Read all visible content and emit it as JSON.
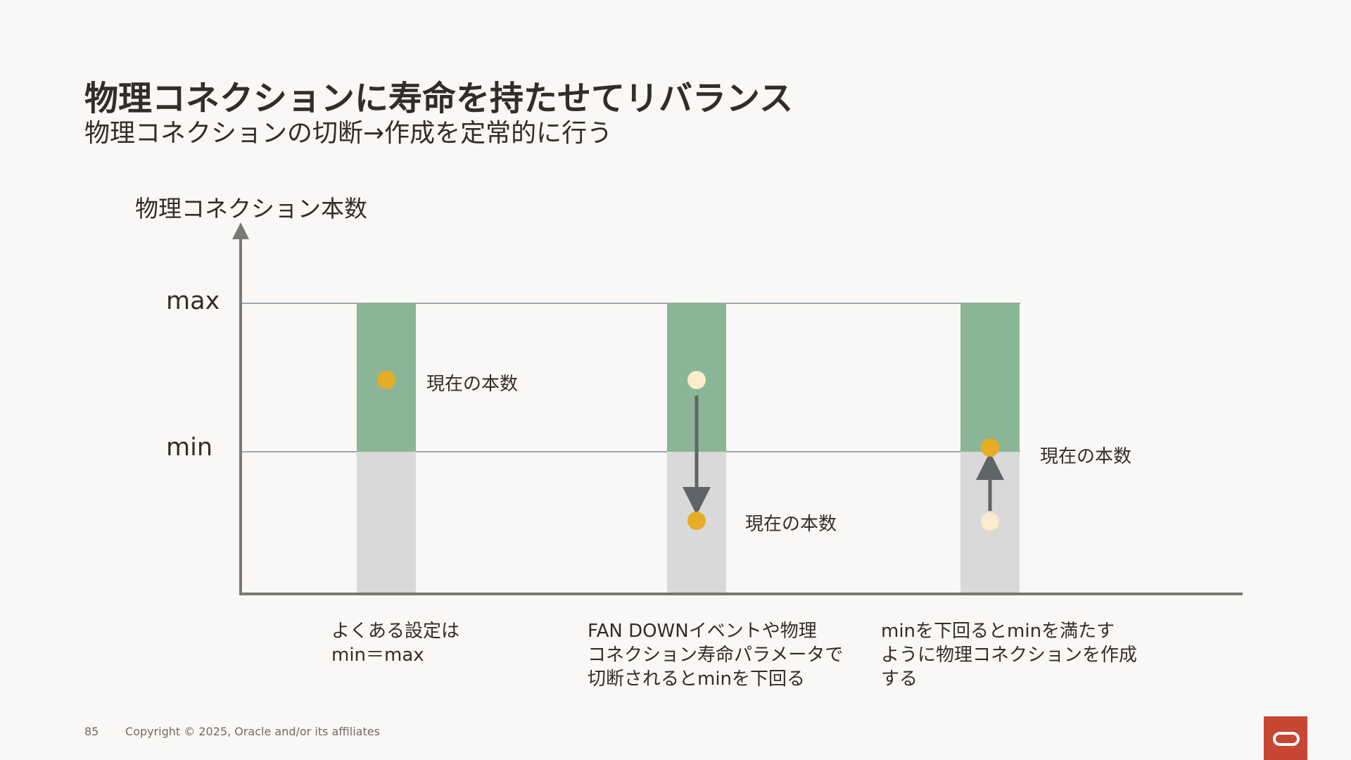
{
  "title": "物理コネクションに寿命を持たせてリバランス",
  "subtitle": "物理コネクションの切断→作成を定常的に行う",
  "axis": {
    "y_label": "物理コネクション本数",
    "max_label": "max",
    "min_label": "min"
  },
  "columns": [
    {
      "point_label": "現在の本数",
      "caption": "よくある設定は\nmin＝max"
    },
    {
      "point_label": "現在の本数",
      "caption": "FAN DOWNイベントや物理\nコネクション寿命パラメータで\n切断されるとminを下回る"
    },
    {
      "point_label": "現在の本数",
      "caption": "minを下回るとminを満たす\nように物理コネクションを作成\nする"
    }
  ],
  "colors": {
    "pool_range": "#8bb696",
    "below_min": "#d9d9d9",
    "current": "#e6ac24",
    "previous": "#fbeccb",
    "arrow": "#5f6566",
    "axis": "#7a7875",
    "guide": "#7f8c97"
  },
  "footer": {
    "page_number": "85",
    "copyright": "Copyright © 2025, Oracle and/or its affiliates"
  }
}
